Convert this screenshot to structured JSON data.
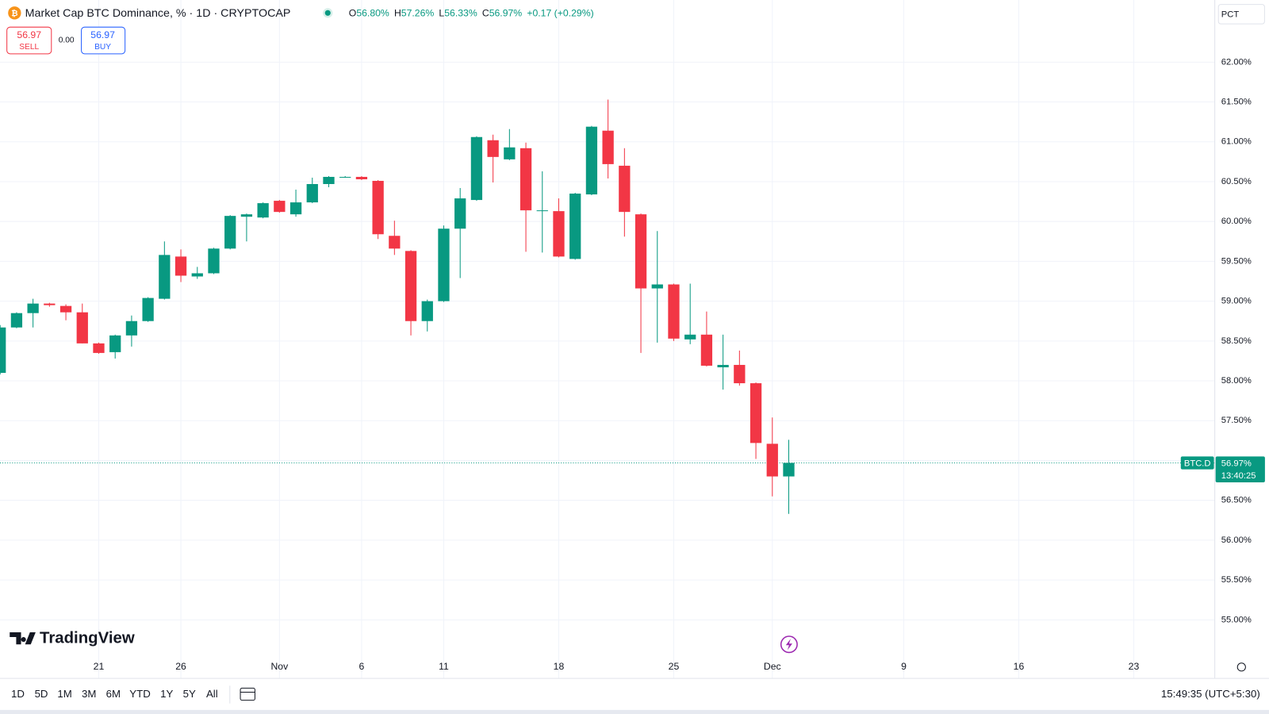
{
  "header": {
    "title": "Market Cap BTC Dominance, % · 1D · CRYPTOCAP",
    "ohlc": [
      {
        "label": "O",
        "value": "56.80%"
      },
      {
        "label": "H",
        "value": "57.26%"
      },
      {
        "label": "L",
        "value": "56.33%"
      },
      {
        "label": "C",
        "value": "56.97%"
      }
    ],
    "change": "+0.17 (+0.29%)"
  },
  "trade": {
    "sell": {
      "price": "56.97",
      "label": "SELL"
    },
    "spread": "0.00",
    "buy": {
      "price": "56.97",
      "label": "BUY"
    }
  },
  "scale_mode": "PCT",
  "logo": "TradingView",
  "ranges": [
    "1D",
    "5D",
    "1M",
    "3M",
    "6M",
    "YTD",
    "1Y",
    "5Y",
    "All"
  ],
  "clock": "15:49:35 (UTC+5:30)",
  "chart_data": {
    "type": "candlestick",
    "categories": [
      null,
      null,
      null,
      null,
      null,
      null,
      "21",
      null,
      null,
      null,
      null,
      "26",
      null,
      null,
      null,
      null,
      null,
      "Nov",
      null,
      null,
      null,
      null,
      "6",
      null,
      null,
      null,
      null,
      "11",
      null,
      null,
      null,
      null,
      null,
      null,
      "18",
      null,
      null,
      null,
      null,
      null,
      null,
      "25",
      null,
      null,
      null,
      null,
      null,
      "Dec",
      null,
      null,
      null,
      null,
      null,
      null,
      null,
      "9",
      null,
      null,
      null,
      null,
      null,
      null,
      "16",
      null,
      null,
      null,
      null,
      null,
      null,
      "23",
      null,
      null,
      null,
      null,
      null
    ],
    "open": [
      58.1,
      58.67,
      58.85,
      58.97,
      58.94,
      58.86,
      58.47,
      58.36,
      58.57,
      58.75,
      59.03,
      59.56,
      59.31,
      59.35,
      59.66,
      60.06,
      60.05,
      60.26,
      60.09,
      60.24,
      60.47,
      60.55,
      60.56,
      60.51,
      59.82,
      59.63,
      58.75,
      59.0,
      59.91,
      60.27,
      61.02,
      60.78,
      60.92,
      60.13,
      60.13,
      59.53,
      60.34,
      61.14,
      60.7,
      60.09,
      59.16,
      59.21,
      58.52,
      58.58,
      58.17,
      58.2,
      57.97,
      57.21,
      56.8,
      null,
      null,
      null,
      null,
      null,
      null,
      null,
      null,
      null,
      null,
      null,
      null,
      null,
      null,
      null,
      null,
      null,
      null,
      null,
      null,
      null,
      null,
      null,
      null,
      null,
      null
    ],
    "high": [
      58.7,
      58.86,
      59.03,
      58.98,
      58.96,
      58.97,
      58.48,
      58.58,
      58.82,
      59.05,
      59.75,
      59.65,
      59.43,
      59.67,
      60.08,
      60.1,
      60.24,
      60.27,
      60.4,
      60.55,
      60.57,
      60.57,
      60.57,
      60.52,
      60.01,
      59.64,
      59.02,
      59.95,
      60.42,
      61.07,
      61.09,
      61.16,
      60.99,
      60.63,
      60.29,
      60.36,
      61.2,
      61.53,
      60.92,
      60.1,
      59.88,
      59.22,
      59.22,
      58.87,
      58.58,
      58.38,
      57.98,
      57.54,
      57.26,
      null,
      null,
      null,
      null,
      null,
      null,
      null,
      null,
      null,
      null,
      null,
      null,
      null,
      null,
      null,
      null,
      null,
      null,
      null,
      null,
      null,
      null,
      null,
      null,
      null,
      null
    ],
    "low": [
      58.08,
      58.66,
      58.67,
      58.93,
      58.76,
      58.47,
      58.34,
      58.28,
      58.43,
      58.74,
      59.02,
      59.24,
      59.28,
      59.34,
      59.65,
      59.75,
      60.04,
      60.11,
      60.06,
      60.23,
      60.43,
      60.55,
      60.52,
      59.78,
      59.58,
      58.57,
      58.62,
      58.99,
      59.29,
      60.26,
      60.49,
      60.77,
      59.62,
      59.61,
      59.55,
      59.52,
      60.33,
      60.54,
      59.81,
      58.35,
      58.48,
      58.5,
      58.46,
      58.18,
      57.89,
      57.94,
      57.02,
      56.55,
      56.33,
      null,
      null,
      null,
      null,
      null,
      null,
      null,
      null,
      null,
      null,
      null,
      null,
      null,
      null,
      null,
      null,
      null,
      null,
      null,
      null,
      null,
      null,
      null,
      null,
      null,
      null
    ],
    "close": [
      58.67,
      58.85,
      58.97,
      58.95,
      58.86,
      58.47,
      58.35,
      58.57,
      58.75,
      59.04,
      59.58,
      59.32,
      59.35,
      59.66,
      60.07,
      60.09,
      60.23,
      60.12,
      60.24,
      60.47,
      60.56,
      60.56,
      60.53,
      59.84,
      59.66,
      58.75,
      59.0,
      59.91,
      60.29,
      61.06,
      60.81,
      60.93,
      60.14,
      60.14,
      59.56,
      60.35,
      61.19,
      60.72,
      60.12,
      59.16,
      59.21,
      58.53,
      58.58,
      58.19,
      58.2,
      57.97,
      57.22,
      56.8,
      56.97,
      null,
      null,
      null,
      null,
      null,
      null,
      null,
      null,
      null,
      null,
      null,
      null,
      null,
      null,
      null,
      null,
      null,
      null,
      null,
      null,
      null,
      null,
      null,
      null,
      null,
      null
    ],
    "up_color": "#089981",
    "down_color": "#f23645",
    "ylim": [
      54.55,
      62.78
    ],
    "yticks": [
      {
        "value": 55,
        "label": "55.00%"
      },
      {
        "value": 55.5,
        "label": "55.50%"
      },
      {
        "value": 56,
        "label": "56.00%"
      },
      {
        "value": 56.5,
        "label": "56.50%"
      },
      {
        "value": 57,
        "label": "57.00%"
      },
      {
        "value": 57.5,
        "label": "57.50%"
      },
      {
        "value": 58,
        "label": "58.00%"
      },
      {
        "value": 58.5,
        "label": "58.50%"
      },
      {
        "value": 59,
        "label": "59.00%"
      },
      {
        "value": 59.5,
        "label": "59.50%"
      },
      {
        "value": 60,
        "label": "60.00%"
      },
      {
        "value": 60.5,
        "label": "60.50%"
      },
      {
        "value": 61,
        "label": "61.00%"
      },
      {
        "value": 61.5,
        "label": "61.50%"
      },
      {
        "value": 62,
        "label": "62.00%"
      }
    ],
    "grid": true,
    "last_price": {
      "value": 56.97,
      "label": "56.97%",
      "symbol": "BTC.D",
      "countdown": "13:40:25"
    }
  }
}
